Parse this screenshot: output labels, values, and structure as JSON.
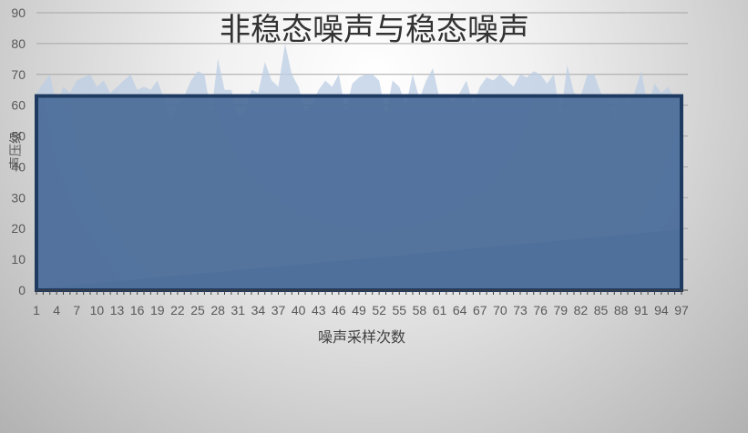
{
  "chart_data": {
    "type": "area",
    "title": "非稳态噪声与稳态噪声",
    "xlabel": "噪声采样次数",
    "ylabel": "声压级",
    "ylim": [
      0,
      90
    ],
    "y_ticks": [
      0,
      10,
      20,
      30,
      40,
      50,
      60,
      70,
      80,
      90
    ],
    "x_tick_labels": [
      "1",
      "4",
      "7",
      "10",
      "13",
      "16",
      "19",
      "22",
      "25",
      "28",
      "31",
      "34",
      "37",
      "40",
      "43",
      "46",
      "49",
      "52",
      "55",
      "58",
      "61",
      "64",
      "67",
      "70",
      "73",
      "76",
      "79",
      "82",
      "85",
      "88",
      "91",
      "94",
      "97"
    ],
    "grid": true,
    "legend": "none",
    "x": [
      1,
      2,
      3,
      4,
      5,
      6,
      7,
      8,
      9,
      10,
      11,
      12,
      13,
      14,
      15,
      16,
      17,
      18,
      19,
      20,
      21,
      22,
      23,
      24,
      25,
      26,
      27,
      28,
      29,
      30,
      31,
      32,
      33,
      34,
      35,
      36,
      37,
      38,
      39,
      40,
      41,
      42,
      43,
      44,
      45,
      46,
      47,
      48,
      49,
      50,
      51,
      52,
      53,
      54,
      55,
      56,
      57,
      58,
      59,
      60,
      61,
      62,
      63,
      64,
      65,
      66,
      67,
      68,
      69,
      70,
      71,
      72,
      73,
      74,
      75,
      76,
      77,
      78,
      79,
      80,
      81,
      82,
      83,
      84,
      85,
      86,
      87,
      88,
      89,
      90,
      91,
      92,
      93,
      94,
      95,
      96,
      97
    ],
    "series": [
      {
        "values": [
          64,
          67,
          70,
          60,
          66,
          64,
          68,
          69,
          70,
          66,
          68,
          64,
          66,
          68,
          70,
          65,
          66,
          65,
          68,
          62,
          55,
          60,
          63,
          68,
          71,
          70,
          57,
          75,
          65,
          65,
          56,
          58,
          65,
          64,
          74,
          68,
          66,
          80,
          70,
          66,
          58,
          60,
          65,
          68,
          66,
          70,
          58,
          67,
          69,
          70,
          70,
          68,
          57,
          68,
          66,
          60,
          70,
          62,
          68,
          72,
          62,
          63,
          61,
          64,
          68,
          60,
          66,
          69,
          68,
          70,
          68,
          66,
          70,
          69,
          71,
          70,
          67,
          70,
          56,
          73,
          64,
          63,
          70,
          70,
          64,
          62,
          55,
          64,
          60,
          64,
          71,
          60,
          67,
          64,
          66,
          62,
          60
        ],
        "color": "#bccde4",
        "opacity": 0.75
      },
      {
        "values": [
          0.5,
          0.7,
          0.9,
          1.1,
          1.3,
          1.5,
          1.7,
          1.9,
          2.1,
          2.3,
          2.5,
          2.7,
          2.9,
          3.1,
          3.3,
          3.5,
          3.7,
          3.9,
          4.1,
          4.3,
          4.5,
          4.7,
          4.9,
          5.1,
          5.3,
          5.5,
          5.7,
          5.9,
          6.1,
          6.3,
          6.5,
          6.7,
          6.9,
          7.1,
          7.3,
          7.5,
          7.7,
          7.9,
          8.1,
          8.3,
          8.5,
          8.7,
          8.9,
          9.1,
          9.3,
          9.5,
          9.7,
          9.9,
          10.1,
          10.3,
          10.5,
          10.7,
          10.9,
          11.1,
          11.3,
          11.5,
          11.7,
          11.9,
          12.1,
          12.3,
          12.5,
          12.7,
          12.9,
          13.1,
          13.3,
          13.5,
          13.7,
          13.9,
          14.1,
          14.3,
          14.5,
          14.7,
          14.9,
          15.1,
          15.3,
          15.5,
          15.7,
          15.9,
          16.1,
          16.3,
          16.5,
          16.7,
          16.9,
          17.1,
          17.3,
          17.5,
          17.7,
          17.9,
          18.1,
          18.3,
          18.5,
          18.7,
          18.9,
          19.1,
          19.3,
          19.5,
          19.7
        ],
        "color": "#5f7fa6",
        "opacity": 0.55
      },
      {
        "values": [
          63,
          63,
          63,
          63,
          63,
          63,
          63,
          63,
          63,
          63,
          63,
          63,
          63,
          63,
          63,
          63,
          63,
          63,
          63,
          63,
          63,
          63,
          63,
          63,
          63,
          63,
          63,
          63,
          63,
          63,
          63,
          63,
          63,
          63,
          63,
          63,
          63,
          63,
          63,
          63,
          63,
          63,
          63,
          63,
          63,
          63,
          63,
          63,
          63,
          63,
          63,
          63,
          63,
          63,
          63,
          63,
          63,
          63,
          63,
          63,
          63,
          63,
          63,
          63,
          63,
          63,
          63,
          63,
          63,
          63,
          63,
          63,
          63,
          63,
          63,
          63,
          63,
          63,
          63,
          63,
          63,
          63,
          63,
          63,
          63,
          63,
          63,
          63,
          63,
          63,
          63,
          63,
          63,
          63,
          63,
          63,
          63
        ],
        "color": "#4a6b98",
        "stroke": "#1f3a60",
        "opacity": 0.92
      }
    ]
  }
}
